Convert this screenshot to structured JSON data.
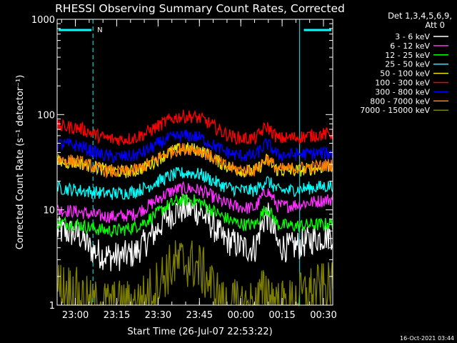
{
  "chart_data": {
    "type": "line",
    "title": "RHESSI Observing Summary Count Rates, Corrected",
    "xlabel": "Start Time (26-Jul-07 22:53:22)",
    "ylabel": "Corrected Count Rate (s⁻¹ detector⁻¹)",
    "yscale": "log",
    "ylim": [
      1,
      1000
    ],
    "xlim_minutes": [
      0,
      100
    ],
    "y_ticks": [
      {
        "value": 1,
        "label": "1"
      },
      {
        "value": 10,
        "label": "10"
      },
      {
        "value": 100,
        "label": "100"
      },
      {
        "value": 1000,
        "label": "1000"
      }
    ],
    "x_ticks": [
      {
        "minute": 6.63,
        "label": "23:00"
      },
      {
        "minute": 21.63,
        "label": "23:15"
      },
      {
        "minute": 36.63,
        "label": "23:30"
      },
      {
        "minute": 51.63,
        "label": "23:45"
      },
      {
        "minute": 66.63,
        "label": "00:00"
      },
      {
        "minute": 81.63,
        "label": "00:15"
      },
      {
        "minute": 96.63,
        "label": "00:30"
      }
    ],
    "legend_header": [
      "Det 1,3,4,5,6,9,",
      "Att 0"
    ],
    "legend_placement": "right",
    "night_marker_label": "N",
    "night_intervals_minutes": [
      [
        0,
        13
      ],
      [
        88,
        100
      ]
    ],
    "flag_bars_minutes": [
      [
        0,
        13
      ],
      [
        89,
        100
      ]
    ],
    "timestamp": "16-Oct-2021 03:44",
    "series": [
      {
        "name": "3 - 6 keV",
        "color": "#ffffff",
        "values": [
          6.0,
          5.8,
          5.5,
          3.9,
          3.4,
          3.2,
          3.3,
          3.5,
          4.5,
          6.0,
          8.5,
          10.0,
          10.2,
          9.5,
          7.0,
          5.0,
          4.5,
          4.0,
          4.0,
          9.0,
          4.2,
          4.0,
          4.3,
          4.8,
          5.2,
          5.5
        ]
      },
      {
        "name": "6 - 12 keV",
        "color": "#ff30ff",
        "values": [
          10.0,
          9.8,
          9.5,
          9.0,
          8.6,
          8.5,
          8.6,
          9.0,
          10.5,
          12.5,
          15.0,
          16.5,
          16.8,
          16.0,
          14.0,
          12.0,
          11.0,
          10.5,
          10.5,
          16.0,
          11.0,
          11.0,
          11.5,
          12.0,
          12.5,
          13.0
        ]
      },
      {
        "name": "12 - 25 keV",
        "color": "#00ff00",
        "values": [
          7.5,
          7.2,
          7.0,
          6.5,
          6.2,
          6.0,
          6.2,
          6.6,
          7.5,
          9.0,
          11.0,
          12.5,
          12.8,
          12.0,
          10.0,
          8.5,
          7.5,
          7.0,
          7.0,
          10.5,
          7.0,
          6.8,
          6.8,
          7.0,
          7.0,
          7.2
        ]
      },
      {
        "name": "25 - 50 keV",
        "color": "#00ffff",
        "values": [
          17.0,
          16.5,
          16.0,
          15.5,
          15.0,
          14.8,
          15.0,
          15.5,
          17.0,
          19.5,
          22.0,
          24.0,
          24.5,
          23.5,
          20.5,
          18.0,
          16.5,
          16.0,
          16.0,
          20.5,
          16.0,
          16.0,
          16.5,
          17.0,
          17.5,
          18.0
        ]
      },
      {
        "name": "50 - 100 keV",
        "color": "#e6e600",
        "values": [
          32.0,
          31.5,
          31.0,
          29.0,
          27.0,
          25.5,
          25.0,
          25.5,
          28.0,
          33.0,
          39.0,
          43.0,
          44.0,
          42.0,
          36.0,
          30.0,
          27.0,
          25.5,
          25.5,
          33.0,
          26.0,
          25.5,
          26.0,
          27.0,
          28.0,
          29.0
        ]
      },
      {
        "name": "100 - 300 keV",
        "color": "#ff0000",
        "values": [
          75.0,
          74.0,
          72.0,
          65.0,
          58.0,
          55.0,
          55.0,
          57.0,
          63.0,
          74.0,
          86.0,
          95.0,
          96.0,
          91.0,
          78.0,
          65.0,
          58.0,
          56.0,
          56.0,
          75.0,
          56.0,
          57.0,
          58.0,
          60.0,
          62.0,
          63.0
        ]
      },
      {
        "name": "300 - 800 keV",
        "color": "#0000ff",
        "values": [
          49.0,
          48.5,
          47.0,
          42.0,
          38.0,
          36.0,
          36.0,
          37.0,
          41.0,
          48.0,
          55.0,
          59.0,
          60.0,
          57.0,
          49.0,
          42.0,
          38.0,
          37.0,
          37.0,
          50.0,
          37.5,
          38.0,
          38.5,
          39.0,
          39.5,
          39.0
        ]
      },
      {
        "name": "800 - 7000 keV",
        "color": "#ff8000",
        "values": [
          34.0,
          33.0,
          32.0,
          29.0,
          26.5,
          25.0,
          25.0,
          26.0,
          29.0,
          34.0,
          39.5,
          43.0,
          44.0,
          42.0,
          36.0,
          30.0,
          27.0,
          26.0,
          26.0,
          35.0,
          26.5,
          27.0,
          27.5,
          28.0,
          29.0,
          30.0
        ]
      },
      {
        "name": "7000 - 15000 keV",
        "color": "#808000",
        "values": [
          1.6,
          1.5,
          1.3,
          1.0,
          1.0,
          1.0,
          1.0,
          1.0,
          1.2,
          1.6,
          2.3,
          2.8,
          2.8,
          2.4,
          1.6,
          1.0,
          1.0,
          1.0,
          1.0,
          1.5,
          1.0,
          1.0,
          1.2,
          1.4,
          1.5,
          1.5
        ]
      }
    ]
  }
}
